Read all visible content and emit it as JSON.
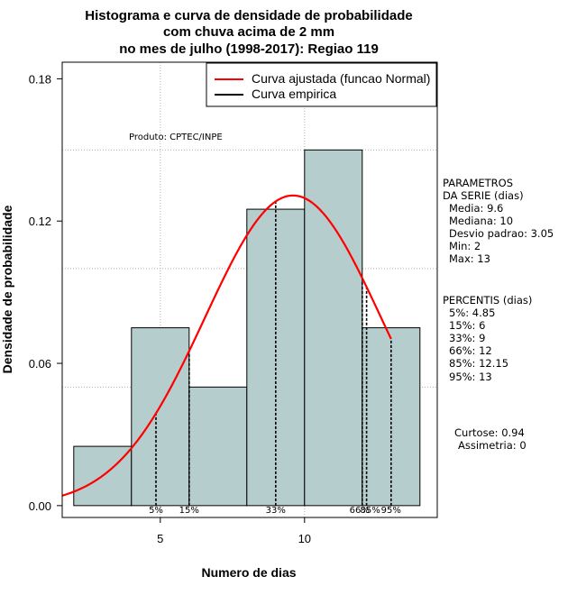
{
  "chart_data": {
    "type": "bar",
    "title": [
      "Histograma e curva de densidade de probabilidade",
      "com chuva acima de 2 mm",
      "no mes de julho (1998-2017): Regiao 119"
    ],
    "xlabel": "Numero de dias",
    "ylabel": "Densidade de probabilidade",
    "xlim": [
      1.6,
      14.6
    ],
    "ylim": [
      -0.005,
      0.187
    ],
    "x_ticks": [
      5,
      10
    ],
    "y_ticks": [
      0.0,
      0.06,
      0.12,
      0.18
    ],
    "y_tick_labels": [
      "0.00",
      "0.06",
      "0.12",
      "0.18"
    ],
    "grid": true,
    "grid_y_values": [
      0.05,
      0.1,
      0.15
    ],
    "grid_x_values": [
      5,
      10
    ],
    "bins": [
      {
        "start": 2,
        "end": 4,
        "density": 0.025
      },
      {
        "start": 4,
        "end": 6,
        "density": 0.075
      },
      {
        "start": 6,
        "end": 8,
        "density": 0.05
      },
      {
        "start": 8,
        "end": 10,
        "density": 0.125
      },
      {
        "start": 10,
        "end": 12,
        "density": 0.15
      },
      {
        "start": 12,
        "end": 14,
        "density": 0.075
      }
    ],
    "bar_color": "#b6cdcd",
    "curve": {
      "name": "Curva ajustada (funcao Normal)",
      "color": "#ff0000",
      "mean": 9.6,
      "sd": 3.05,
      "x_start": 1.6,
      "x_end": 13
    },
    "percentile_lines": [
      {
        "label": "5%",
        "x": 4.85
      },
      {
        "label": "15%",
        "x": 6
      },
      {
        "label": "33%",
        "x": 9
      },
      {
        "label": "66%",
        "x": 12
      },
      {
        "label": "85%",
        "x": 12.15
      },
      {
        "label": "95%",
        "x": 13
      }
    ],
    "legend": {
      "position": "top-right",
      "entries": [
        {
          "label": "Curva ajustada (funcao Normal)",
          "color": "#ff0000"
        },
        {
          "label": "Curva empirica",
          "color": "#000000"
        }
      ]
    },
    "annotations": {
      "product": "Produto: CPTEC/INPE",
      "params_title": [
        "PARAMETROS",
        "DA SERIE (dias)"
      ],
      "params": [
        "Media: 9.6",
        "Mediana: 10",
        "Desvio padrao: 3.05",
        "Min: 2",
        "Max: 13"
      ],
      "percentis_title": "PERCENTIS (dias)",
      "percentis": [
        "5%: 4.85",
        "15%: 6",
        "33%: 9",
        "66%: 12",
        "85%: 12.15",
        "95%: 13"
      ],
      "curtose": "Curtose: 0.94",
      "assimetria": "Assimetria: 0"
    }
  }
}
